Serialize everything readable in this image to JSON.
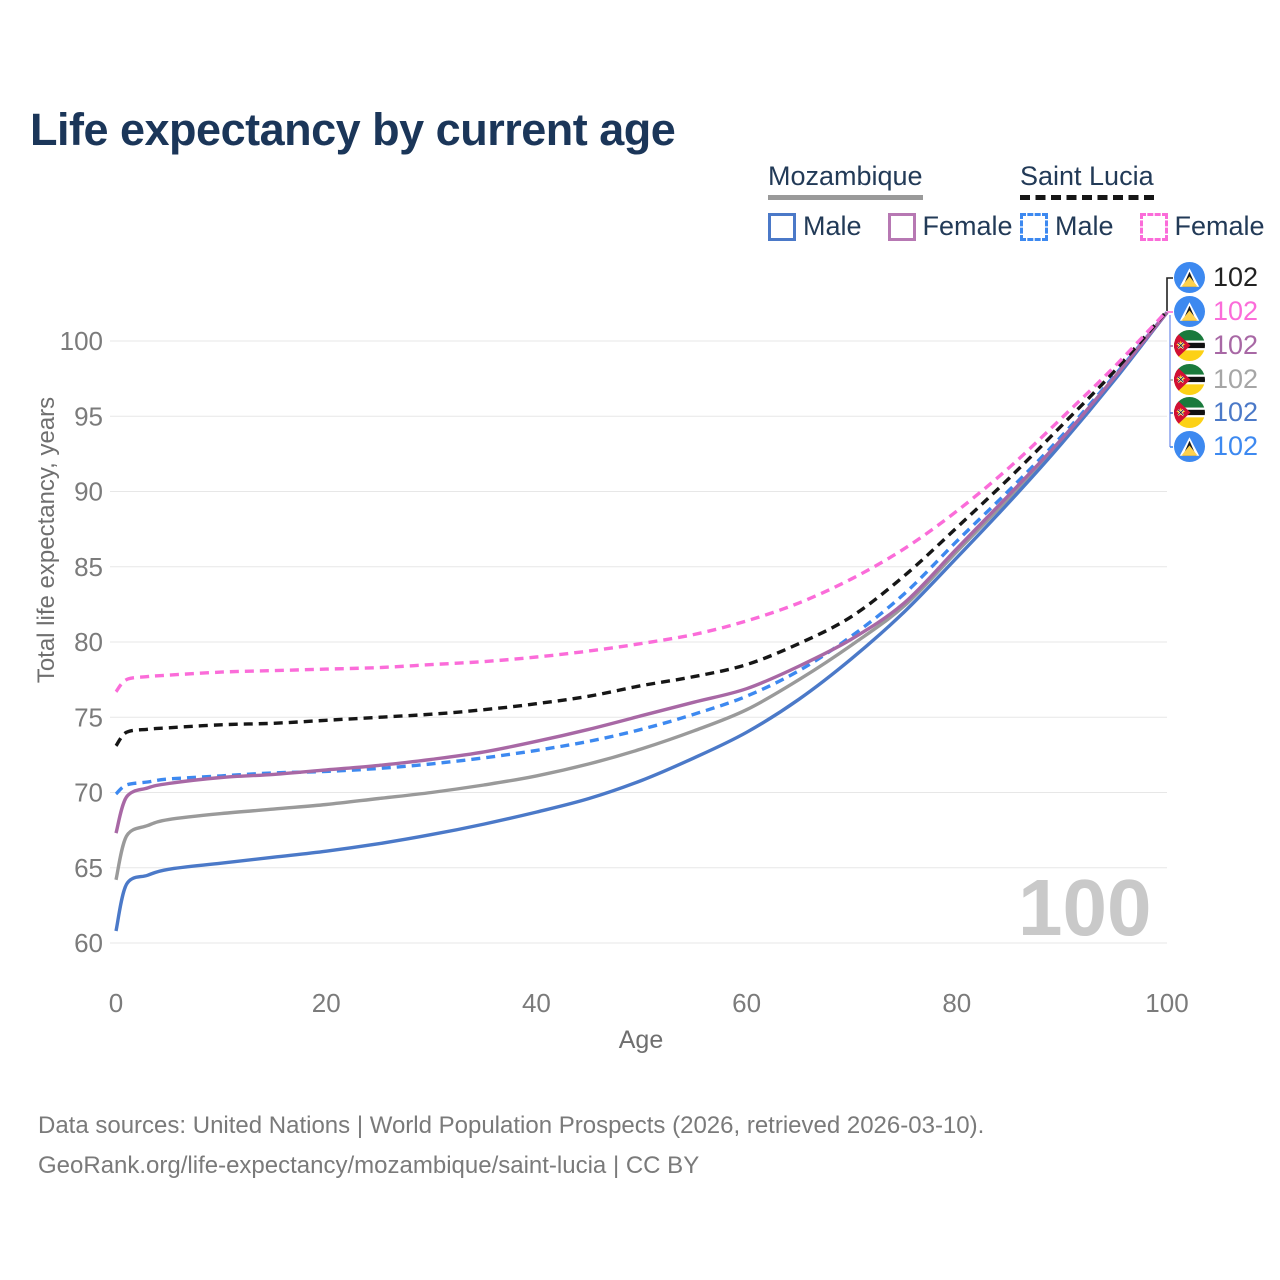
{
  "title": "Life expectancy by current age",
  "legend": {
    "groups": [
      {
        "label": "Mozambique",
        "line_style": "solid",
        "line_color": "#9a9a9a",
        "items": [
          {
            "label": "Male",
            "color": "#4b79c8",
            "dashed": false
          },
          {
            "label": "Female",
            "color": "#b778b3",
            "dashed": false
          }
        ]
      },
      {
        "label": "Saint Lucia",
        "line_style": "dashed",
        "line_color": "#161616",
        "items": [
          {
            "label": "Male",
            "color": "#3d89f0",
            "dashed": true
          },
          {
            "label": "Female",
            "color": "#fb6cd9",
            "dashed": true
          }
        ]
      }
    ]
  },
  "watermark": "100",
  "chart_data": {
    "type": "line",
    "title": "Life expectancy by current age",
    "xlabel": "Age",
    "ylabel": "Total life expectancy, years",
    "xlim": [
      0,
      100
    ],
    "ylim": [
      60,
      103
    ],
    "xticks": [
      0,
      20,
      40,
      60,
      80,
      100
    ],
    "yticks": [
      60,
      65,
      70,
      75,
      80,
      85,
      90,
      95,
      100
    ],
    "grid": "horizontal",
    "x": [
      0,
      1,
      3,
      5,
      10,
      15,
      20,
      25,
      30,
      35,
      40,
      45,
      50,
      55,
      60,
      65,
      70,
      75,
      80,
      85,
      90,
      95,
      100
    ],
    "series": [
      {
        "name": "Saint Lucia Male",
        "country": "Saint Lucia",
        "sex": "Male",
        "color": "#3d89f0",
        "dashed": true,
        "values": [
          69.9,
          70.5,
          70.7,
          70.9,
          71.1,
          71.3,
          71.4,
          71.6,
          71.9,
          72.3,
          72.8,
          73.4,
          74.2,
          75.2,
          76.4,
          78.1,
          80.4,
          83.2,
          86.7,
          90.1,
          93.7,
          97.7,
          101.9
        ]
      },
      {
        "name": "Mozambique All",
        "country": "Mozambique",
        "sex": "All",
        "color": "#9a9a9a",
        "dashed": false,
        "values": [
          64.2,
          67.1,
          67.8,
          68.2,
          68.6,
          68.9,
          69.2,
          69.6,
          70.0,
          70.5,
          71.1,
          71.9,
          72.9,
          74.1,
          75.5,
          77.5,
          79.8,
          82.4,
          86.0,
          89.6,
          93.4,
          97.5,
          101.9
        ]
      },
      {
        "name": "Mozambique Male",
        "country": "Mozambique",
        "sex": "Male",
        "color": "#4b79c8",
        "dashed": false,
        "values": [
          60.8,
          63.9,
          64.5,
          64.9,
          65.3,
          65.7,
          66.1,
          66.6,
          67.2,
          67.9,
          68.7,
          69.6,
          70.8,
          72.3,
          74.0,
          76.2,
          78.9,
          82.0,
          85.6,
          89.3,
          93.2,
          97.4,
          101.9
        ]
      },
      {
        "name": "Mozambique Female",
        "country": "Mozambique",
        "sex": "Female",
        "color": "#a868a5",
        "dashed": false,
        "values": [
          67.3,
          69.7,
          70.3,
          70.6,
          71.0,
          71.2,
          71.5,
          71.8,
          72.2,
          72.7,
          73.4,
          74.2,
          75.1,
          76.0,
          76.9,
          78.4,
          80.2,
          82.6,
          86.2,
          89.8,
          93.5,
          97.6,
          101.9
        ]
      },
      {
        "name": "Saint Lucia All",
        "country": "Saint Lucia",
        "sex": "All",
        "color": "#161616",
        "dashed": true,
        "values": [
          73.1,
          74.0,
          74.2,
          74.3,
          74.5,
          74.6,
          74.8,
          75.0,
          75.2,
          75.5,
          75.9,
          76.4,
          77.1,
          77.7,
          78.5,
          79.9,
          81.7,
          84.4,
          87.6,
          90.9,
          94.4,
          98.0,
          102.0
        ]
      },
      {
        "name": "Saint Lucia Female",
        "country": "Saint Lucia",
        "sex": "Female",
        "color": "#fb6cd9",
        "dashed": true,
        "values": [
          76.7,
          77.5,
          77.7,
          77.8,
          78.0,
          78.1,
          78.2,
          78.3,
          78.5,
          78.7,
          79.0,
          79.4,
          79.9,
          80.5,
          81.4,
          82.6,
          84.2,
          86.2,
          88.7,
          91.6,
          94.9,
          98.3,
          102.0
        ]
      }
    ]
  },
  "end_labels": [
    {
      "country": "Saint Lucia",
      "sex": "All",
      "flag": "saint-lucia",
      "value": "102",
      "color": "#222222"
    },
    {
      "country": "Saint Lucia",
      "sex": "Female",
      "flag": "saint-lucia",
      "value": "102",
      "color": "#fb6cd9"
    },
    {
      "country": "Mozambique",
      "sex": "Female",
      "flag": "mozambique",
      "value": "102",
      "color": "#a868a5"
    },
    {
      "country": "Mozambique",
      "sex": "All",
      "flag": "mozambique",
      "value": "102",
      "color": "#a6a6a6"
    },
    {
      "country": "Mozambique",
      "sex": "Male",
      "flag": "mozambique",
      "value": "102",
      "color": "#4b79c8"
    },
    {
      "country": "Saint Lucia",
      "sex": "Male",
      "flag": "saint-lucia",
      "value": "102",
      "color": "#3d89f0"
    }
  ],
  "footer": {
    "line1": "Data sources: United Nations | World Population Prospects (2026, retrieved 2026-03-10).",
    "line2": "GeoRank.org/life-expectancy/mozambique/saint-lucia | CC BY"
  }
}
